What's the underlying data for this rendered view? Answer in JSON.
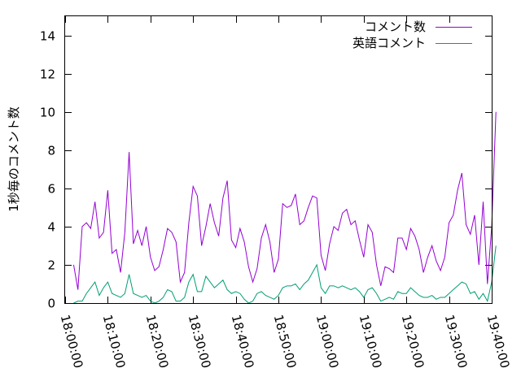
{
  "chart_data": {
    "type": "line",
    "title": "",
    "xlabel": "",
    "ylabel": "1秒毎のコメント数",
    "xlim": [
      "18:00:00",
      "19:40:00"
    ],
    "ylim": [
      0,
      15
    ],
    "grid": false,
    "legend_position": "top-right",
    "x_ticks": [
      "18:00:00",
      "18:10:00",
      "18:20:00",
      "18:30:00",
      "18:40:00",
      "18:50:00",
      "19:00:00",
      "19:10:00",
      "19:20:00",
      "19:30:00",
      "19:40:00"
    ],
    "y_ticks": [
      0,
      2,
      4,
      6,
      8,
      10,
      12,
      14
    ],
    "x_step_minutes": 1,
    "series": [
      {
        "name": "コメント数",
        "color": "#9400d3",
        "start": "18:02:00",
        "values": [
          2.0,
          0.7,
          4.0,
          4.2,
          3.9,
          5.3,
          3.4,
          3.7,
          5.9,
          2.6,
          2.8,
          1.6,
          3.7,
          7.9,
          3.1,
          3.8,
          3.0,
          4.0,
          2.4,
          1.7,
          1.9,
          2.8,
          3.9,
          3.7,
          3.2,
          1.1,
          1.6,
          4.2,
          6.1,
          5.6,
          3.0,
          4.0,
          5.2,
          4.2,
          3.5,
          5.5,
          6.4,
          3.3,
          2.9,
          3.9,
          3.2,
          1.9,
          1.1,
          1.8,
          3.4,
          4.1,
          3.2,
          1.6,
          2.3,
          5.2,
          5.0,
          5.1,
          5.7,
          4.1,
          4.3,
          5.0,
          5.6,
          5.5,
          2.5,
          1.7,
          3.1,
          4.0,
          3.8,
          4.7,
          4.9,
          4.1,
          4.3,
          3.3,
          2.4,
          4.1,
          3.7,
          2.0,
          0.9,
          1.9,
          1.8,
          1.6,
          3.4,
          3.4,
          2.8,
          3.9,
          3.5,
          2.8,
          1.6,
          2.4,
          3.0,
          2.2,
          1.7,
          2.4,
          4.2,
          4.6,
          5.9,
          6.8,
          4.1,
          3.6,
          4.6,
          2.0,
          5.3,
          1.0,
          4.0,
          10.0
        ]
      },
      {
        "name": "英語コメント",
        "color": "#009e73",
        "start": "18:02:00",
        "values": [
          0.0,
          0.1,
          0.1,
          0.5,
          0.8,
          1.1,
          0.4,
          0.8,
          1.1,
          0.5,
          0.4,
          0.3,
          0.5,
          1.5,
          0.5,
          0.4,
          0.3,
          0.4,
          0.1,
          0.0,
          0.1,
          0.3,
          0.7,
          0.6,
          0.1,
          0.1,
          0.3,
          1.1,
          1.5,
          0.6,
          0.6,
          1.4,
          1.1,
          0.8,
          1.0,
          1.2,
          0.7,
          0.5,
          0.6,
          0.5,
          0.2,
          0.0,
          0.1,
          0.5,
          0.6,
          0.4,
          0.3,
          0.2,
          0.4,
          0.8,
          0.9,
          0.9,
          1.0,
          0.7,
          1.0,
          1.2,
          1.6,
          2.0,
          0.8,
          0.5,
          0.9,
          0.9,
          0.8,
          0.9,
          0.8,
          0.7,
          0.8,
          0.6,
          0.3,
          0.7,
          0.8,
          0.5,
          0.1,
          0.2,
          0.3,
          0.2,
          0.6,
          0.5,
          0.5,
          0.8,
          0.6,
          0.4,
          0.3,
          0.3,
          0.4,
          0.2,
          0.3,
          0.3,
          0.5,
          0.7,
          0.9,
          1.1,
          1.0,
          0.5,
          0.6,
          0.2,
          0.5,
          0.1,
          1.1,
          3.0
        ]
      }
    ]
  }
}
